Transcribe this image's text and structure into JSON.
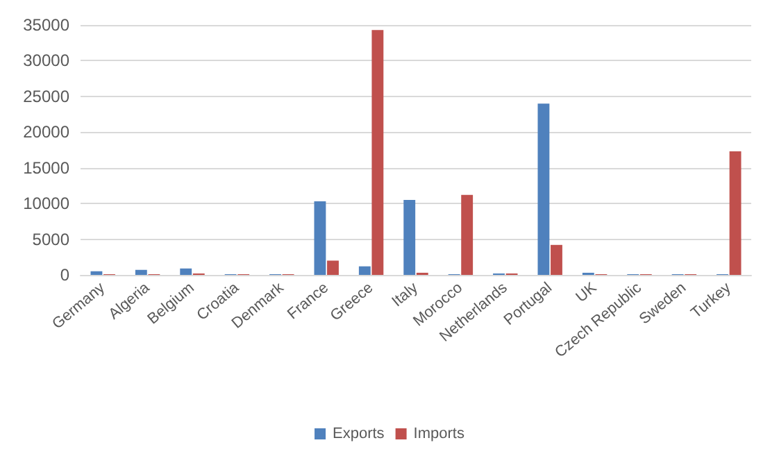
{
  "chart_data": {
    "type": "bar",
    "categories": [
      "Germany",
      "Algeria",
      "Belgium",
      "Croatia",
      "Denmark",
      "France",
      "Greece",
      "Italy",
      "Morocco",
      "Netherlands",
      "Portugal",
      "UK",
      "Czech Republic",
      "Sweden",
      "Turkey"
    ],
    "series": [
      {
        "name": "Exports",
        "color": "#4f81bd",
        "values": [
          500,
          700,
          900,
          100,
          100,
          10300,
          1200,
          10500,
          100,
          200,
          24000,
          300,
          100,
          100,
          100
        ]
      },
      {
        "name": "Imports",
        "color": "#c0504d",
        "values": [
          100,
          100,
          200,
          100,
          100,
          2000,
          34300,
          300,
          11200,
          200,
          4200,
          100,
          100,
          100,
          17300
        ]
      }
    ],
    "ylim": [
      0,
      35000
    ],
    "yticks": [
      0,
      5000,
      10000,
      15000,
      20000,
      25000,
      30000,
      35000
    ],
    "grid": "y",
    "legend": "bottom"
  }
}
